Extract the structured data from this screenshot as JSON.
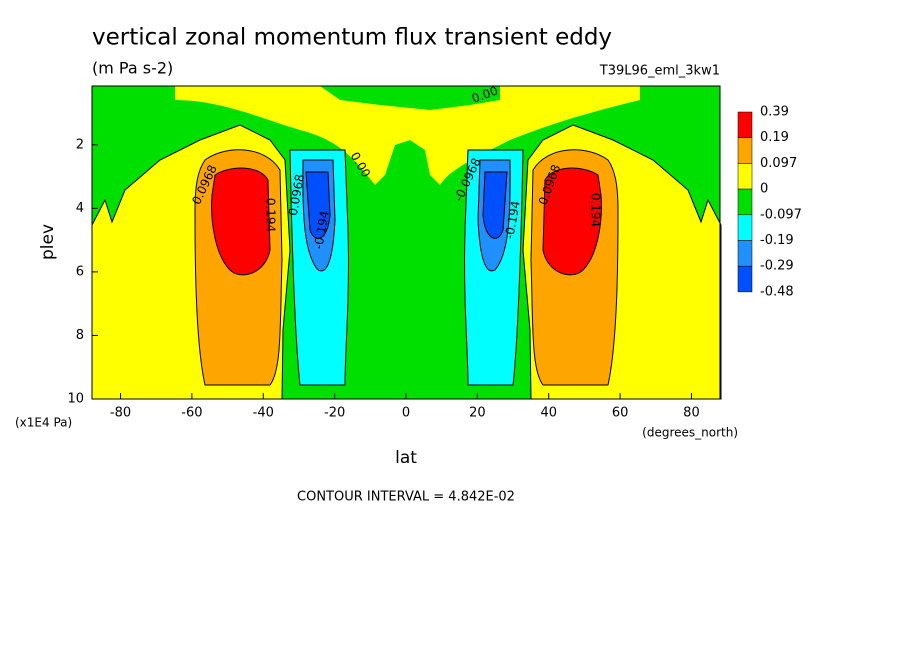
{
  "chart_data": {
    "type": "contour",
    "title": "vertical zonal momentum flux transient eddy",
    "subtitle": "(m Pa s-2)",
    "run_label": "T39L96_eml_3kw1",
    "x_label": "lat",
    "x_units": "(degrees_north)",
    "y_label": "plev",
    "y_units": "(x1E4 Pa)",
    "footnote": "CONTOUR INTERVAL = 4.842E-02",
    "xlim": [
      -88,
      88
    ],
    "xticks": [
      -80,
      -60,
      -40,
      -20,
      0,
      20,
      40,
      60,
      80
    ],
    "ylim": [
      10,
      0.15
    ],
    "yticks": [
      2,
      4,
      6,
      8,
      10
    ],
    "levels": [
      0.39,
      0.19,
      0.097,
      0,
      -0.097,
      -0.19,
      -0.29,
      -0.48
    ],
    "colors": [
      "#ff0000",
      "#ffa500",
      "#ffff00",
      "#00e000",
      "#00ffff",
      "#2090ff",
      "#0050ff"
    ],
    "contour_labels": [
      "0.0968",
      "0.194",
      "0.0968",
      "-0.194",
      "0.00",
      "0.00",
      "-0.0968",
      "-0.194",
      "0.0968",
      "0.194"
    ]
  }
}
